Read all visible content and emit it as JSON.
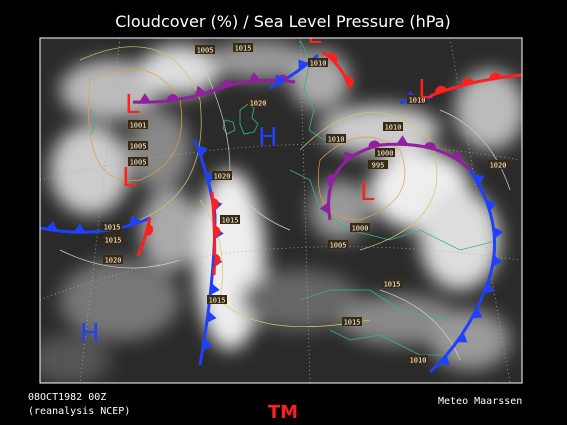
{
  "header": {
    "title": "Cloudcover (%) / Sea Level Pressure (hPa)"
  },
  "footer": {
    "date": "08OCT1982 00Z",
    "source": "(reanalysis NCEP)",
    "credit": "Meteo Maarssen",
    "logo": "TM"
  },
  "pressure_centers": [
    "L",
    "L",
    "L",
    "L",
    "L",
    "H",
    "H"
  ],
  "isobar_labels": [
    "1005",
    "1015",
    "1010",
    "1020",
    "1001",
    "1005",
    "1005",
    "1020",
    "1015",
    "1015",
    "1020",
    "1015",
    "1015",
    "1010",
    "1010",
    "1000",
    "995",
    "1020",
    "1000",
    "1005",
    "1015",
    "1015",
    "1010",
    "1010"
  ]
}
